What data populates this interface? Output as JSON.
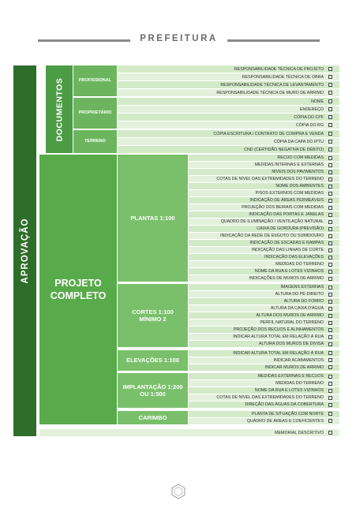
{
  "header": {
    "title": "PREFEITURA"
  },
  "sidebar": "APROVAÇÃO",
  "sections": [
    {
      "title": "DOCUMENTOS",
      "groups": [
        {
          "title": "PROFISSIONAL",
          "items": [
            "RESPONSABILIDADE TÉCNICA DE PROJETO",
            "RESPONSABILIDADE TÉCNICA DE OBRA",
            "RESPONSABILIDADE TÉCNICA DE LEVANTAMENTO",
            "RESPONSABILIDADE TÉCNICA DE MURO DE ARRIMO"
          ]
        },
        {
          "title": "PROPRIETÁRIO",
          "items": [
            "NOME",
            "ENDEREÇO",
            "CÓPIA DO CPF",
            "CÓPIA DO RG"
          ]
        },
        {
          "title": "TERRENO",
          "items": [
            "CÓPIA ESCRITURA / CONTRATO DE COMPRA E VENDA",
            "CÓPIA DA CAPA DO IPTU",
            "CND (CERTIDÃO NEGATIVA DE DÉBITO)"
          ]
        }
      ]
    },
    {
      "title": "PROJETO COMPLETO",
      "groups": [
        {
          "title": "PLANTAS 1:100",
          "items": [
            "RECUO COM MEDIDAS",
            "MEDIDAS INTERNAS E EXTERNAS",
            "NÍVEIS DOS PAVIMENTOS",
            "COTAS DE NÍVEL DAS EXTREMIDADES DO TERRENO",
            "NOME DOS AMBIENTES",
            "PISOS EXTERNOS COM MEDIDAS",
            "INDICAÇÃO DE ÁREAS PERMEÁVEIS",
            "PROJEÇÃO DOS BEIRAIS COM MEDIDAS",
            "INDICAÇÃO DAS PORTAS E JANELAS",
            "QUADRO DE ILUMINAÇÃO / VENTILAÇÃO NATURAL",
            "CAIXA DE GORDURA (PREVISÃO)",
            "INDICAÇÃO DA REDE DE ESGOTO OU SUMIDOURO",
            "INDICAÇÃO DE ESCADAS E RAMPAS",
            "INDICAÇÃO DAS LINHAS DE CORTE",
            "INDICAÇÃO DAS ELEVAÇÕES",
            "MEDIDAS DO TERRENO",
            "NOME DA RUA E LOTES VIZINHOS",
            "INDICAÇÕES DE MUROS DE ARRIMO"
          ]
        },
        {
          "title": "CORTES 1:100 MÍNIMO 2",
          "items": [
            "IMAGENS EXTERNAS",
            "ALTURA DO PÉ-DIREITO",
            "ALTURA DO FORRO",
            "ALTURA DA CAIXA D'ÁGUA",
            "ALTURA DOS MUROS DE ARRIMO",
            "PERFIL NATURAL DO TERRENO",
            "PROJEÇÃO DOS RECUOS E ALINHAMENTOS",
            "INDICAR ALTURA TOTAL EM RELAÇÃO À RUA",
            "ALTURA DOS MUROS DE DIVISA"
          ]
        },
        {
          "title": "ELEVAÇÕES 1:100",
          "items": [
            "INDICAR ALTURA TOTAL EM RELAÇÃO À RUA",
            "INDICAR ACABAMENTOS",
            "INDICAR MUROS DE ARRIMO"
          ]
        },
        {
          "title": "IMPLANTAÇÃO 1:200 OU 1:500",
          "items": [
            "MEDIDAS EXTERNAS E RECUOS",
            "MEDIDAS DO TERRENO",
            "NOME DA RUA E LOTES VIZINHOS",
            "COTAS DE NÍVEL DAS EXTREMIDADES DO TERRENO",
            "DIREÇÃO DAS ÁGUAS DA COBERTURA"
          ]
        },
        {
          "title": "CARIMBO",
          "items": [
            "PLANTA DE SITUAÇÃO COM NORTE",
            "QUADRO DE ÁREAS E COEFICIENTES"
          ]
        }
      ]
    }
  ],
  "footer_item": "MEMORIAL DESCRITIVO"
}
